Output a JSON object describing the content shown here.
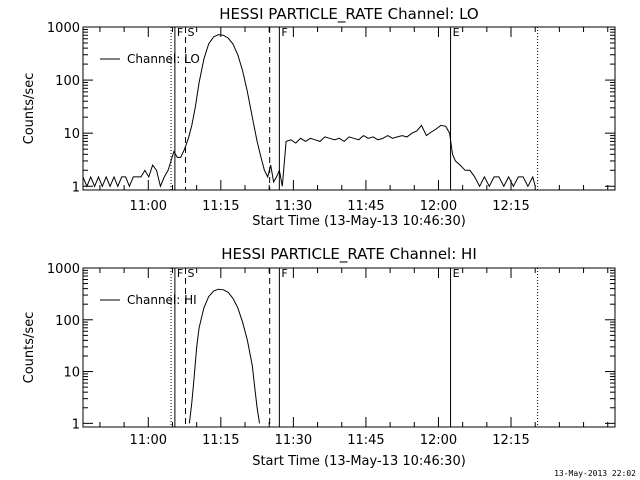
{
  "charts": [
    {
      "title": "HESSI PARTICLE_RATE Channel: LO",
      "ylabel": "Counts/sec",
      "xlabel": "Start Time (13-May-13 10:46:30)",
      "legend": "Channel: LO"
    },
    {
      "title": "HESSI PARTICLE_RATE Channel: HI",
      "ylabel": "Counts/sec",
      "xlabel": "Start Time (13-May-13 10:46:30)",
      "legend": "Channel: HI"
    }
  ],
  "footer": {
    "timestamp": "13-May-2013 22:02"
  },
  "chart_data": [
    {
      "type": "line",
      "title": "HESSI PARTICLE_RATE Channel: LO",
      "xlabel": "Start Time (13-May-13 10:46:30)",
      "ylabel": "Counts/sec",
      "x_unit": "minutes since 10:46:30",
      "xlim": [
        0,
        110
      ],
      "ylim": [
        0.85,
        1000
      ],
      "yscale": "log",
      "x_ticks": [
        {
          "x": 13.5,
          "label": "11:00"
        },
        {
          "x": 28.5,
          "label": "11:15"
        },
        {
          "x": 43.5,
          "label": "11:30"
        },
        {
          "x": 58.5,
          "label": "11:45"
        },
        {
          "x": 73.5,
          "label": "12:00"
        },
        {
          "x": 88.5,
          "label": "12:15"
        }
      ],
      "y_ticks": [
        {
          "y": 1,
          "label": "1"
        },
        {
          "y": 10,
          "label": "10"
        },
        {
          "y": 100,
          "label": "100"
        },
        {
          "y": 1000,
          "label": "1000"
        }
      ],
      "markers": [
        {
          "x": 18.2,
          "style": "dotted",
          "label": ""
        },
        {
          "x": 19.0,
          "style": "solid",
          "label": "F"
        },
        {
          "x": 21.2,
          "style": "dashed",
          "label": "S"
        },
        {
          "x": 38.6,
          "style": "dashed",
          "label": ""
        },
        {
          "x": 40.6,
          "style": "solid",
          "label": "F"
        },
        {
          "x": 76.0,
          "style": "solid",
          "label": "E"
        },
        {
          "x": 94.0,
          "style": "dotted",
          "label": ""
        }
      ],
      "series": [
        {
          "name": "Channel: LO",
          "x": [
            0,
            0.8,
            1.6,
            2.4,
            3.2,
            4.0,
            4.8,
            5.6,
            6.4,
            7.2,
            8.0,
            8.8,
            9.6,
            10.4,
            11.2,
            12.0,
            12.8,
            13.6,
            14.4,
            15.2,
            16.0,
            16.8,
            17.6,
            18.2,
            18.8,
            19.5,
            20.2,
            21.0,
            21.8,
            22.5,
            23.2,
            24.0,
            25.0,
            26.0,
            27.0,
            28.0,
            29.0,
            30.0,
            31.0,
            32.0,
            33.0,
            34.0,
            35.0,
            36.0,
            36.8,
            37.5,
            38.2,
            38.8,
            39.4,
            40.0,
            40.6,
            41.2,
            42.0,
            43.0,
            44.0,
            45.0,
            46.0,
            47.0,
            48.0,
            49.0,
            50.0,
            51.0,
            52.0,
            53.0,
            54.0,
            55.0,
            56.0,
            57.0,
            58.0,
            59.0,
            60.0,
            61.0,
            62.0,
            63.0,
            64.0,
            65.0,
            66.0,
            67.0,
            68.0,
            69.0,
            70.0,
            71.0,
            72.0,
            73.0,
            74.0,
            75.0,
            75.8,
            76.4,
            77.0,
            78.0,
            79.0,
            80.0,
            81.0,
            82.0,
            83.0,
            84.0,
            85.0,
            86.0,
            87.0,
            88.0,
            89.0,
            90.0,
            91.0,
            92.0,
            93.0,
            93.5
          ],
          "y": [
            1.5,
            1,
            1.5,
            1,
            1.5,
            1,
            1.5,
            1,
            1.5,
            1,
            1.5,
            1.5,
            1,
            1.5,
            1.5,
            1.5,
            2,
            1.5,
            2.5,
            2,
            1,
            1.5,
            2,
            3,
            4.5,
            3.5,
            3.5,
            5,
            8,
            14,
            30,
            90,
            250,
            480,
            650,
            720,
            700,
            620,
            480,
            300,
            150,
            60,
            20,
            7,
            3.5,
            2,
            1.5,
            2.5,
            1.2,
            1.5,
            2,
            1,
            7,
            7.5,
            6.5,
            8,
            7,
            8,
            7.5,
            7,
            8.5,
            8,
            7.5,
            8,
            7,
            8.5,
            8,
            7.5,
            9,
            8,
            8.5,
            7.5,
            8,
            9,
            8,
            8.5,
            9,
            8.5,
            10,
            11,
            14,
            9,
            10.5,
            12,
            14,
            13.5,
            10,
            4,
            3,
            2.5,
            2,
            2,
            1.5,
            1,
            1.5,
            1,
            1.5,
            1.5,
            1,
            1.5,
            1,
            1.5,
            1.5,
            1,
            1.5,
            1
          ]
        }
      ]
    },
    {
      "type": "line",
      "title": "HESSI PARTICLE_RATE Channel: HI",
      "xlabel": "Start Time (13-May-13 10:46:30)",
      "ylabel": "Counts/sec",
      "x_unit": "minutes since 10:46:30",
      "xlim": [
        0,
        110
      ],
      "ylim": [
        0.85,
        1000
      ],
      "yscale": "log",
      "x_ticks": [
        {
          "x": 13.5,
          "label": "11:00"
        },
        {
          "x": 28.5,
          "label": "11:15"
        },
        {
          "x": 43.5,
          "label": "11:30"
        },
        {
          "x": 58.5,
          "label": "11:45"
        },
        {
          "x": 73.5,
          "label": "12:00"
        },
        {
          "x": 88.5,
          "label": "12:15"
        }
      ],
      "y_ticks": [
        {
          "y": 1,
          "label": "1"
        },
        {
          "y": 10,
          "label": "10"
        },
        {
          "y": 100,
          "label": "100"
        },
        {
          "y": 1000,
          "label": "1000"
        }
      ],
      "markers": [
        {
          "x": 18.2,
          "style": "dotted",
          "label": ""
        },
        {
          "x": 19.0,
          "style": "solid",
          "label": "F"
        },
        {
          "x": 21.2,
          "style": "dashed",
          "label": "S"
        },
        {
          "x": 38.6,
          "style": "dashed",
          "label": ""
        },
        {
          "x": 40.6,
          "style": "solid",
          "label": "F"
        },
        {
          "x": 76.0,
          "style": "solid",
          "label": "E"
        },
        {
          "x": 94.0,
          "style": "dotted",
          "label": ""
        }
      ],
      "series": [
        {
          "name": "Channel: HI",
          "x": [
            22.0,
            22.5,
            23.0,
            23.5,
            24.0,
            25.0,
            26.0,
            27.0,
            28.0,
            29.0,
            30.0,
            31.0,
            32.0,
            33.0,
            34.0,
            35.0,
            35.5,
            36.0,
            36.5
          ],
          "y": [
            1,
            2.5,
            8,
            30,
            70,
            170,
            280,
            360,
            390,
            380,
            340,
            260,
            170,
            90,
            40,
            13,
            5,
            2,
            1
          ]
        }
      ]
    }
  ]
}
